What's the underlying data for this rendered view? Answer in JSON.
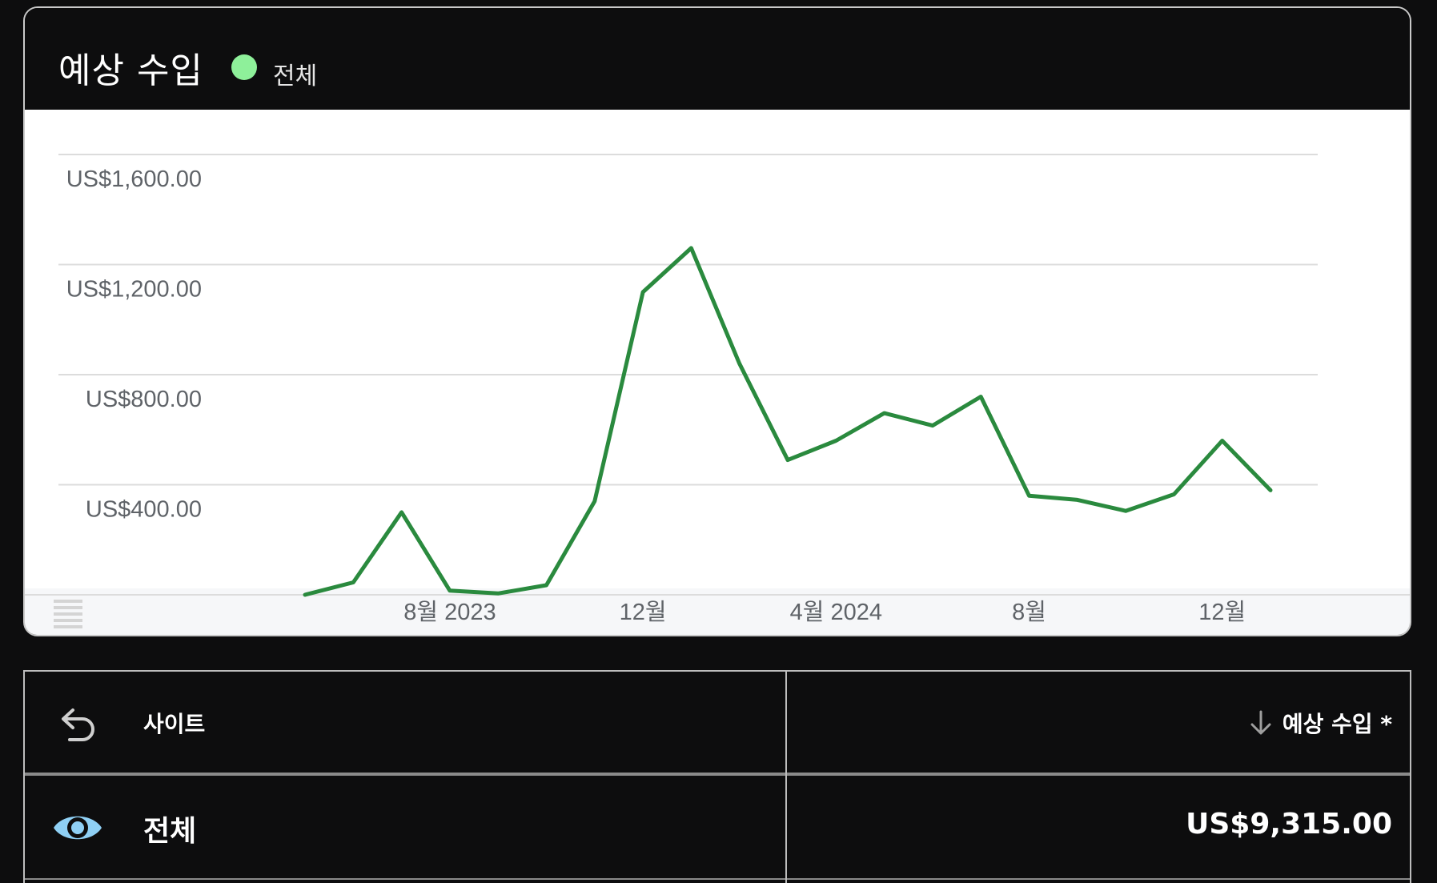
{
  "card": {
    "title": "예상 수입",
    "legend_label": "전체",
    "legend_color": "#8ef09a"
  },
  "chart_data": {
    "type": "line",
    "x": [
      "2023-05",
      "2023-06",
      "2023-07",
      "2023-08",
      "2023-09",
      "2023-10",
      "2023-11",
      "2023-12",
      "2024-01",
      "2024-02",
      "2024-03",
      "2024-04",
      "2024-05",
      "2024-06",
      "2024-07",
      "2024-08",
      "2024-09",
      "2024-10",
      "2024-11",
      "2024-12",
      "2025-01"
    ],
    "series": [
      {
        "values": [
          0,
          45,
          300,
          15,
          5,
          35,
          340,
          1100,
          1260,
          840,
          490,
          560,
          660,
          615,
          720,
          360,
          345,
          305,
          365,
          560,
          380
        ],
        "color": "#2a8a3e"
      }
    ],
    "y_ticks": [
      "US$400.00",
      "US$800.00",
      "US$1,200.00",
      "US$1,600.00"
    ],
    "x_ticks": [
      "8월 2023",
      "12월",
      "4월 2024",
      "8월",
      "12월"
    ],
    "ylim": [
      0,
      1600
    ],
    "grid": true
  },
  "table": {
    "header": {
      "site_label": "사이트",
      "earnings_label": "예상 수입 *"
    },
    "rows": [
      {
        "label": "전체",
        "value": "US$9,315.00"
      }
    ]
  }
}
